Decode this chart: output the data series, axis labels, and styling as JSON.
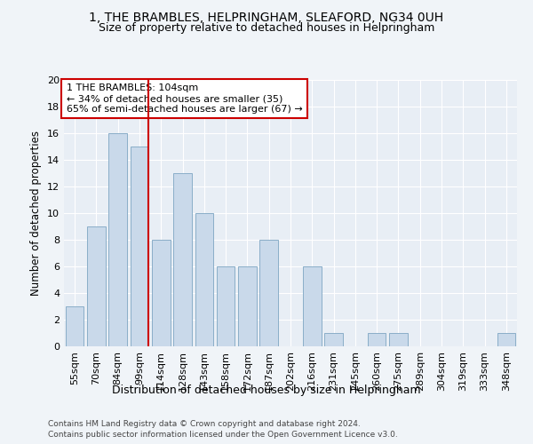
{
  "title1": "1, THE BRAMBLES, HELPRINGHAM, SLEAFORD, NG34 0UH",
  "title2": "Size of property relative to detached houses in Helpringham",
  "xlabel": "Distribution of detached houses by size in Helpringham",
  "ylabel": "Number of detached properties",
  "categories": [
    "55sqm",
    "70sqm",
    "84sqm",
    "99sqm",
    "114sqm",
    "128sqm",
    "143sqm",
    "158sqm",
    "172sqm",
    "187sqm",
    "202sqm",
    "216sqm",
    "231sqm",
    "245sqm",
    "260sqm",
    "275sqm",
    "289sqm",
    "304sqm",
    "319sqm",
    "333sqm",
    "348sqm"
  ],
  "values": [
    3,
    9,
    16,
    15,
    8,
    13,
    10,
    6,
    6,
    8,
    0,
    6,
    1,
    0,
    1,
    1,
    0,
    0,
    0,
    0,
    1
  ],
  "bar_color": "#c9d9ea",
  "bar_edge_color": "#8aaec8",
  "background_color": "#e8eef5",
  "fig_background_color": "#f0f4f8",
  "annotation_text": "1 THE BRAMBLES: 104sqm\n← 34% of detached houses are smaller (35)\n65% of semi-detached houses are larger (67) →",
  "vline_x_index": 3,
  "vline_color": "#cc0000",
  "annotation_box_facecolor": "#ffffff",
  "annotation_box_edgecolor": "#cc0000",
  "ylim": [
    0,
    20
  ],
  "yticks": [
    0,
    2,
    4,
    6,
    8,
    10,
    12,
    14,
    16,
    18,
    20
  ],
  "footer1": "Contains HM Land Registry data © Crown copyright and database right 2024.",
  "footer2": "Contains public sector information licensed under the Open Government Licence v3.0."
}
